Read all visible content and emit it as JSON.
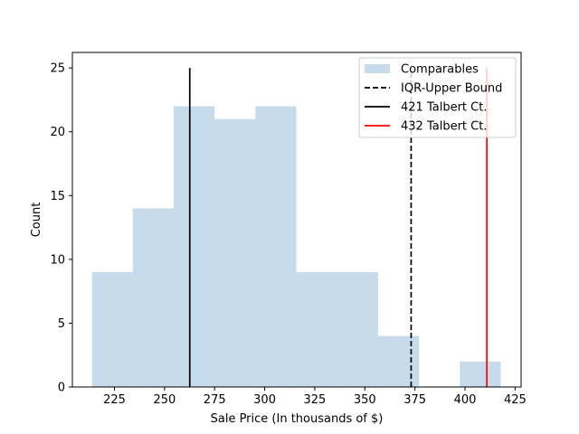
{
  "chart_data": {
    "type": "bar",
    "title": "",
    "xlabel": "Sale Price (In thousands of $)",
    "ylabel": "Count",
    "xlim": [
      204,
      428
    ],
    "ylim": [
      0,
      25
    ],
    "x_ticks": [
      225,
      250,
      275,
      300,
      325,
      350,
      375,
      400,
      425
    ],
    "y_ticks": [
      0,
      5,
      10,
      15,
      20,
      25
    ],
    "grid": false,
    "legend_position": "upper right",
    "histogram": {
      "name": "Comparables",
      "color": "#c6dbeb",
      "bins": [
        {
          "x0": 213.8,
          "x1": 234.2,
          "count": 9
        },
        {
          "x0": 234.2,
          "x1": 254.6,
          "count": 14
        },
        {
          "x0": 254.6,
          "x1": 275.0,
          "count": 22
        },
        {
          "x0": 275.0,
          "x1": 295.4,
          "count": 21
        },
        {
          "x0": 295.4,
          "x1": 315.8,
          "count": 22
        },
        {
          "x0": 315.8,
          "x1": 336.2,
          "count": 9
        },
        {
          "x0": 336.2,
          "x1": 356.6,
          "count": 9
        },
        {
          "x0": 356.6,
          "x1": 377.0,
          "count": 4
        },
        {
          "x0": 377.0,
          "x1": 397.4,
          "count": 0
        },
        {
          "x0": 397.4,
          "x1": 417.8,
          "count": 2
        }
      ]
    },
    "reference_lines": [
      {
        "name": "IQR-Upper Bound",
        "x": 373.1,
        "y_max": 25,
        "color": "#000000",
        "style": "dashed"
      },
      {
        "name": "421 Talbert Ct.",
        "x": 262.6,
        "y_max": 25,
        "color": "#000000",
        "style": "solid"
      },
      {
        "name": "432 Talbert Ct.",
        "x": 410.9,
        "y_max": 25,
        "color": "#ff0000",
        "style": "solid"
      }
    ]
  }
}
